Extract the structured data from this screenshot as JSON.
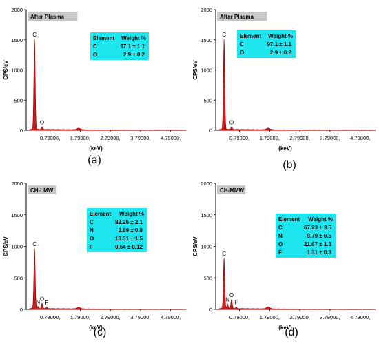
{
  "chart_data": [
    {
      "type": "area",
      "tag": "After Plasma",
      "panel_label": "(a)",
      "xlabel": "(keV)",
      "ylabel": "CPS/eV",
      "ylim": [
        0,
        2000
      ],
      "yticks": [
        "0",
        "500",
        "1000",
        "1500",
        "2000"
      ],
      "xticks": [
        "0.79000,",
        "1.79000,",
        "2.79000,",
        "3.79000,",
        "4.79000,"
      ],
      "xtick_values": [
        0.79,
        1.79,
        2.79,
        3.79,
        4.79
      ],
      "xlim": [
        0,
        5.3
      ],
      "peaks": [
        {
          "label": "C",
          "x": 0.277,
          "y": 1500
        },
        {
          "label": "O",
          "x": 0.525,
          "y": 40
        },
        {
          "label": "",
          "x": 1.74,
          "y": 25
        }
      ],
      "table": {
        "header": [
          "Element",
          "Weight %"
        ],
        "rows": [
          [
            "C",
            "97.1 ± 1.1"
          ],
          [
            "O",
            "2.9 ± 0.2"
          ]
        ]
      }
    },
    {
      "type": "area",
      "tag": "After Plasma",
      "panel_label": "(b)",
      "xlabel": "(keV)",
      "ylabel": "CPS/eV",
      "ylim": [
        0,
        2000
      ],
      "yticks": [
        "0",
        "500",
        "1000",
        "1500",
        "2000"
      ],
      "xticks": [
        "0.79000,",
        "1.79000,",
        "2.79000,",
        "3.79000,",
        "4.79000,"
      ],
      "xtick_values": [
        0.79,
        1.79,
        2.79,
        3.79,
        4.79
      ],
      "xlim": [
        0,
        5.3
      ],
      "peaks": [
        {
          "label": "C",
          "x": 0.277,
          "y": 1500
        },
        {
          "label": "O",
          "x": 0.525,
          "y": 40
        },
        {
          "label": "",
          "x": 1.74,
          "y": 25
        }
      ],
      "table": {
        "header": [
          "Element",
          "Weight %"
        ],
        "rows": [
          [
            "C",
            "97.1 ± 1.1"
          ],
          [
            "O",
            "2.9 ± 0.2"
          ]
        ]
      }
    },
    {
      "type": "area",
      "tag": "CH-LMW",
      "panel_label": "(c)",
      "xlabel": "(keV)",
      "ylabel": "CPS/eV",
      "ylim": [
        0,
        2000
      ],
      "yticks": [
        "0",
        "500",
        "1000",
        "1500",
        "2000"
      ],
      "xticks": [
        "0.79000,",
        "1.79000,",
        "2.79000,",
        "3.79000,",
        "4.79000,"
      ],
      "xtick_values": [
        0.79,
        1.79,
        2.79,
        3.79,
        4.79
      ],
      "xlim": [
        0,
        5.3
      ],
      "peaks": [
        {
          "label": "C",
          "x": 0.277,
          "y": 950
        },
        {
          "label": "N",
          "x": 0.392,
          "y": 30
        },
        {
          "label": "O",
          "x": 0.525,
          "y": 80
        },
        {
          "label": "F",
          "x": 0.677,
          "y": 20
        },
        {
          "label": "",
          "x": 1.74,
          "y": 25
        }
      ],
      "table": {
        "header": [
          "Element",
          "Weight %"
        ],
        "rows": [
          [
            "C",
            "82.26 ± 2.1"
          ],
          [
            "N",
            "3.89 ± 0.8"
          ],
          [
            "O",
            "13.31 ± 1.5"
          ],
          [
            "F",
            "0.54 ± 0.12"
          ]
        ]
      }
    },
    {
      "type": "area",
      "tag": "CH-MMW",
      "panel_label": "(d)",
      "xlabel": "(keV)",
      "ylabel": "CPS/eV",
      "ylim": [
        0,
        2000
      ],
      "yticks": [
        "0",
        "500",
        "1000",
        "1500",
        "2000"
      ],
      "xticks": [
        "0.79000,",
        "1.79000,",
        "2.79000,",
        "3.79000,",
        "4.79000,"
      ],
      "xtick_values": [
        0.79,
        1.79,
        2.79,
        3.79,
        4.79
      ],
      "xlim": [
        0,
        5.3
      ],
      "peaks": [
        {
          "label": "C",
          "x": 0.277,
          "y": 800
        },
        {
          "label": "N",
          "x": 0.392,
          "y": 70
        },
        {
          "label": "O",
          "x": 0.525,
          "y": 140
        },
        {
          "label": "F",
          "x": 0.677,
          "y": 25
        },
        {
          "label": "",
          "x": 1.74,
          "y": 30
        }
      ],
      "table": {
        "header": [
          "Element",
          "Weight %"
        ],
        "rows": [
          [
            "C",
            "67.23 ± 3.5"
          ],
          [
            "N",
            "9.79 ± 0.6"
          ],
          [
            "O",
            "21.67 ± 1.3"
          ],
          [
            "F",
            "1.31 ± 0.3"
          ]
        ]
      }
    }
  ],
  "colors": {
    "spectrum_fill": "#d01818",
    "spectrum_edge": "#8b0000",
    "tag_bg": "#c8c8c8",
    "table_bg": "#1ee6ee"
  }
}
